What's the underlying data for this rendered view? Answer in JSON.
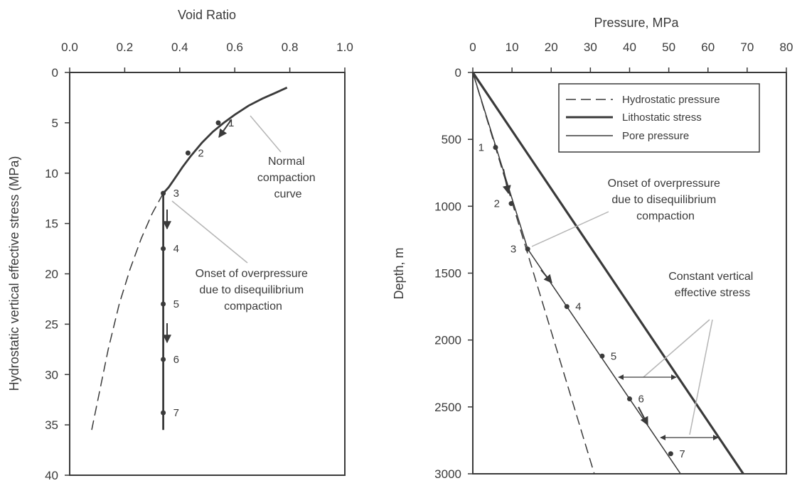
{
  "chart_data": [
    {
      "type": "line",
      "xlabel": "Void Ratio",
      "ylabel": "Hydrostatic vertical  effective stress (MPa)",
      "xlim": [
        0.0,
        1.0
      ],
      "ylim": [
        0,
        40
      ],
      "x_ticks": [
        "0.0",
        "0.2",
        "0.4",
        "0.6",
        "0.8",
        "1.0"
      ],
      "y_ticks": [
        "0",
        "5",
        "10",
        "15",
        "20",
        "25",
        "30",
        "35",
        "40"
      ],
      "x_axis_position": "top",
      "y_inverted": true,
      "series": [
        {
          "style": "solid",
          "points": [
            [
              0.79,
              1.5
            ],
            [
              0.75,
              2.0
            ],
            [
              0.7,
              2.6
            ],
            [
              0.65,
              3.3
            ],
            [
              0.6,
              4.2
            ],
            [
              0.56,
              5.0
            ],
            [
              0.52,
              5.9
            ],
            [
              0.48,
              7.0
            ],
            [
              0.44,
              8.3
            ],
            [
              0.41,
              9.4
            ],
            [
              0.38,
              10.6
            ],
            [
              0.36,
              11.4
            ],
            [
              0.34,
              12.0
            ]
          ]
        },
        {
          "style": "dashed",
          "points": [
            [
              0.34,
              12.0
            ],
            [
              0.3,
              14.0
            ],
            [
              0.26,
              16.5
            ],
            [
              0.22,
              19.5
            ],
            [
              0.18,
              23.0
            ],
            [
              0.14,
              27.5
            ],
            [
              0.11,
              31.5
            ],
            [
              0.08,
              35.5
            ]
          ]
        },
        {
          "style": "solid",
          "points": [
            [
              0.34,
              12.0
            ],
            [
              0.34,
              35.5
            ]
          ]
        }
      ],
      "points": [
        {
          "label": "1",
          "x": 0.54,
          "y": 5.0
        },
        {
          "label": "2",
          "x": 0.43,
          "y": 8.0
        },
        {
          "label": "3",
          "x": 0.34,
          "y": 12.0
        },
        {
          "label": "4",
          "x": 0.34,
          "y": 17.5
        },
        {
          "label": "5",
          "x": 0.34,
          "y": 23.0
        },
        {
          "label": "6",
          "x": 0.34,
          "y": 28.5
        },
        {
          "label": "7",
          "x": 0.34,
          "y": 33.8
        }
      ],
      "annotations": [
        {
          "lines": [
            "Normal",
            "compaction",
            "curve"
          ]
        },
        {
          "lines": [
            "Onset of overpressure",
            "due to disequilibrium",
            "compaction"
          ]
        }
      ]
    },
    {
      "type": "line",
      "xlabel": "Pressure, MPa",
      "ylabel": "Depth, m",
      "xlim": [
        0,
        80
      ],
      "ylim": [
        0,
        3000
      ],
      "x_ticks": [
        "0",
        "10",
        "20",
        "30",
        "40",
        "50",
        "60",
        "70",
        "80"
      ],
      "y_ticks": [
        "0",
        "500",
        "1000",
        "1500",
        "2000",
        "2500",
        "3000"
      ],
      "x_axis_position": "top",
      "y_inverted": true,
      "legend": {
        "position": "top-right",
        "entries": [
          {
            "name": "Hydrostatic pressure",
            "style": "dashed"
          },
          {
            "name": "Lithostatic stress",
            "style": "thick"
          },
          {
            "name": "Pore pressure",
            "style": "thin"
          }
        ]
      },
      "series": [
        {
          "name": "Hydrostatic pressure",
          "style": "dashed",
          "points": [
            [
              0,
              0
            ],
            [
              31,
              3000
            ]
          ]
        },
        {
          "name": "Lithostatic stress",
          "style": "thick",
          "points": [
            [
              0,
              0
            ],
            [
              69,
              3000
            ]
          ]
        },
        {
          "name": "Pore pressure",
          "style": "thin",
          "points": [
            [
              0,
              0
            ],
            [
              14,
              1320
            ],
            [
              53,
              3000
            ]
          ]
        }
      ],
      "points": [
        {
          "label": "1",
          "x": 5.8,
          "y": 560
        },
        {
          "label": "2",
          "x": 9.8,
          "y": 980
        },
        {
          "label": "3",
          "x": 14.0,
          "y": 1320
        },
        {
          "label": "4",
          "x": 24.0,
          "y": 1750
        },
        {
          "label": "5",
          "x": 33.0,
          "y": 2120
        },
        {
          "label": "6",
          "x": 40.0,
          "y": 2440
        },
        {
          "label": "7",
          "x": 50.5,
          "y": 2850
        }
      ],
      "annotations": [
        {
          "lines": [
            "Onset of overpressure",
            "due to disequilibrium",
            "compaction"
          ]
        },
        {
          "lines": [
            "Constant vertical",
            "effective stress"
          ]
        }
      ]
    }
  ]
}
